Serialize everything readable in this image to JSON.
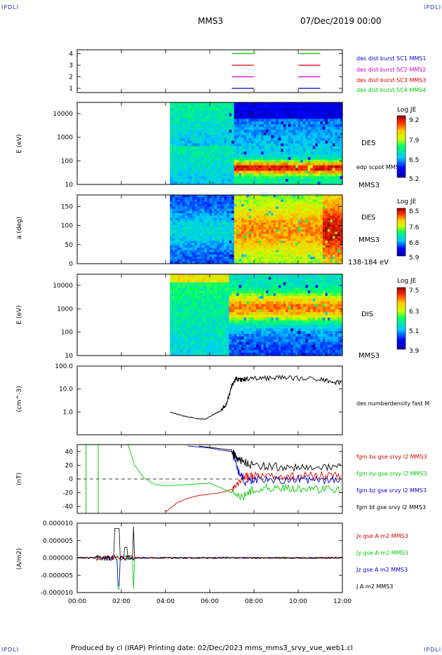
{
  "corner_labels": {
    "tl": "IPDLI",
    "tr": "IPDLI",
    "bl": "IPDLI",
    "br": "IPDLI"
  },
  "header": {
    "spacecraft": "MMS3",
    "datetime": "07/Dec/2019 00:00"
  },
  "footer": {
    "text": "Produced by cl (IRAP)   Printing date: 02/Dec/2023   mms_mms3_srvy_vue_web1.cl"
  },
  "colors": {
    "blue": "#0000cc",
    "magenta": "#cc00cc",
    "red": "#dd0000",
    "green": "#00cc00",
    "black": "#000000"
  },
  "chart_data": [
    {
      "type": "line",
      "id": "burst",
      "yticks": [
        "4",
        "3",
        "2",
        "1"
      ],
      "legend": [
        {
          "name": "des dist burst SC1 MMS1",
          "color": "#0000cc"
        },
        {
          "name": "des dist burst SC2 MMS2",
          "color": "#cc00cc"
        },
        {
          "name": "des dist burst SC3 MMS3",
          "color": "#dd0000"
        },
        {
          "name": "des dist burst SC4 MMS4",
          "color": "#00cc00"
        }
      ],
      "intervals_hours": [
        [
          7.0,
          8.0
        ],
        [
          10.0,
          11.0
        ]
      ],
      "levels": [
        4,
        3,
        2,
        1
      ]
    },
    {
      "type": "heatmap",
      "id": "des-energy",
      "ylabel": "E (eV)",
      "yticks": [
        "10000",
        "1000",
        "100",
        "10"
      ],
      "side_label": "DES",
      "side_label2": "edp scpot MMS3",
      "side_label3": "MMS3",
      "colorbar": {
        "title": "Log JE",
        "ticks": [
          "9.2",
          "7.9",
          "6.5",
          "5.2"
        ]
      },
      "ylim": [
        10,
        30000
      ],
      "data_start_hour": 4.2
    },
    {
      "type": "heatmap",
      "id": "des-pitch",
      "ylabel": "a (deg)",
      "yticks": [
        "150",
        "100",
        "50",
        "0"
      ],
      "side_label": "DES",
      "side_label2": "MMS3",
      "side_label3": "138-184 eV",
      "colorbar": {
        "title": "Log JE",
        "ticks": [
          "8.5",
          "7.6",
          "6.8",
          "5.9"
        ]
      },
      "ylim": [
        0,
        180
      ],
      "data_start_hour": 4.2
    },
    {
      "type": "heatmap",
      "id": "dis-energy",
      "ylabel": "E (eV)",
      "yticks": [
        "10000",
        "1000",
        "100",
        "10"
      ],
      "side_label": "DIS",
      "side_label2": "MMS3",
      "colorbar": {
        "title": "Log JE",
        "ticks": [
          "7.5",
          "6.3",
          "5.1",
          "3.9"
        ]
      },
      "ylim": [
        10,
        30000
      ],
      "data_start_hour": 4.2
    },
    {
      "type": "line",
      "id": "density",
      "ylabel": "(cm^-3)",
      "yticks": [
        "100.0",
        "10.0",
        "1.0"
      ],
      "ylim": [
        0.1,
        100
      ],
      "log": true,
      "series": [
        {
          "name": "des numberdensity fast M",
          "color": "#000000",
          "x": [
            4.2,
            4.6,
            5.0,
            5.4,
            5.8,
            6.2,
            6.5,
            6.7,
            6.9,
            7.0,
            7.2,
            7.4,
            7.6,
            8.0,
            9.0,
            10.0,
            11.0,
            11.5,
            12.0
          ],
          "y": [
            1.0,
            0.75,
            0.6,
            0.52,
            0.48,
            0.8,
            1.1,
            2.0,
            6.0,
            15,
            30,
            25,
            28,
            30,
            32,
            30,
            28,
            20,
            20
          ]
        }
      ]
    },
    {
      "type": "line",
      "id": "bfield",
      "ylabel": "(nT)",
      "yticks": [
        "40",
        "20",
        "0",
        "-20",
        "-40"
      ],
      "ylim": [
        -50,
        50
      ],
      "series": [
        {
          "name": "fgm bx gse srvy l2 MMS3",
          "color": "#dd0000",
          "x": [
            4.0,
            4.5,
            5.0,
            5.5,
            6.0,
            6.5,
            7.0,
            7.5,
            8.0,
            9.0,
            10.0,
            11.0,
            12.0
          ],
          "y": [
            -48,
            -35,
            -28,
            -24,
            -22,
            -20,
            -15,
            2,
            5,
            3,
            4,
            5,
            5
          ]
        },
        {
          "name": "fgm by gse srvy l2 MMS3",
          "color": "#00cc00",
          "x": [
            2.3,
            2.6,
            3.0,
            3.5,
            4.0,
            5.0,
            6.0,
            7.0,
            7.5,
            8.0,
            9.0,
            10.0,
            11.0,
            12.0
          ],
          "y": [
            50,
            20,
            2,
            -8,
            -10,
            -8,
            -6,
            -20,
            -25,
            -15,
            -12,
            -14,
            -15,
            -15
          ]
        },
        {
          "name": "fgm bz gse srvy l2 MMS3",
          "color": "#0000cc",
          "x": [
            5.0,
            6.0,
            6.5,
            7.0,
            7.3,
            7.6,
            8.0,
            9.0,
            10.0,
            11.0,
            12.0
          ],
          "y": [
            48,
            45,
            42,
            40,
            10,
            -5,
            0,
            -2,
            0,
            -3,
            2
          ]
        },
        {
          "name": "fgm bt gse srvy l2 MMS3",
          "color": "#000000",
          "x": [
            5.5,
            6.0,
            6.5,
            7.0,
            7.2,
            7.5,
            8.0,
            9.0,
            10.0,
            11.0,
            12.0
          ],
          "y": [
            48,
            46,
            44,
            42,
            30,
            25,
            20,
            18,
            17,
            16,
            16
          ]
        }
      ]
    },
    {
      "type": "line",
      "id": "current",
      "ylabel": "(A/m2)",
      "yticks": [
        "0.000010",
        "0.000005",
        "0.000000",
        "-0.000005",
        "-0.000010"
      ],
      "ylim": [
        -1e-05,
        1e-05
      ],
      "xticks": [
        "00:00",
        "02:00",
        "04:00",
        "06:00",
        "08:00",
        "10:00",
        "12:00"
      ],
      "xlim": [
        0,
        12
      ],
      "series": [
        {
          "name": "Jx gse A m2 MMS3",
          "color": "#dd0000"
        },
        {
          "name": "Jy gse A m2 MMS3",
          "color": "#00cc00"
        },
        {
          "name": "Jz gse A m2 MMS3",
          "color": "#0000cc"
        },
        {
          "name": "J A m2 MMS3",
          "color": "#000000"
        }
      ]
    }
  ]
}
